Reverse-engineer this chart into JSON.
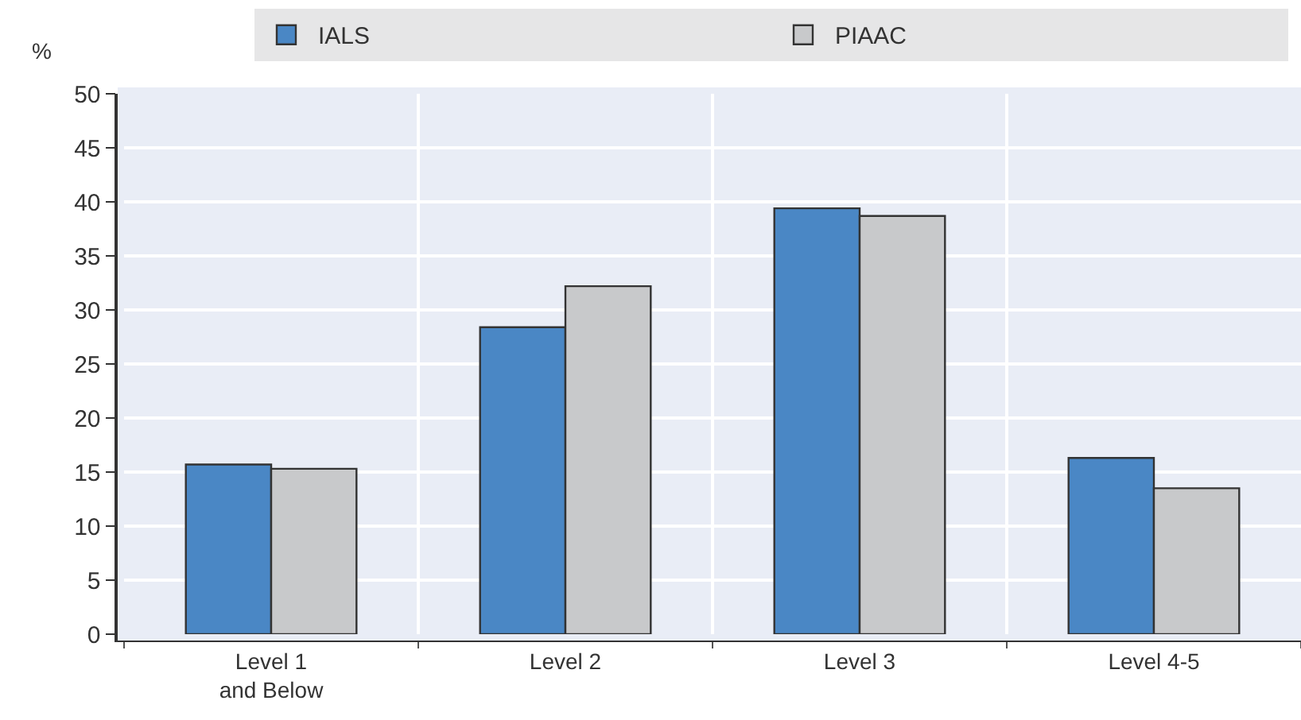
{
  "chart_data": {
    "type": "bar",
    "ylabel": "%",
    "categories": [
      "Level 1\nand Below",
      "Level 2",
      "Level 3",
      "Level 4-5"
    ],
    "series": [
      {
        "name": "IALS",
        "color": "#4a87c5",
        "values": [
          15.7,
          28.4,
          39.4,
          16.3
        ]
      },
      {
        "name": "PIAAC",
        "color": "#c8c9cb",
        "values": [
          15.3,
          32.2,
          38.7,
          13.5
        ]
      }
    ],
    "ylim": [
      0,
      50
    ],
    "yticks": [
      0,
      5,
      10,
      15,
      20,
      25,
      30,
      35,
      40,
      45,
      50
    ],
    "grid": true,
    "legend": "top"
  }
}
